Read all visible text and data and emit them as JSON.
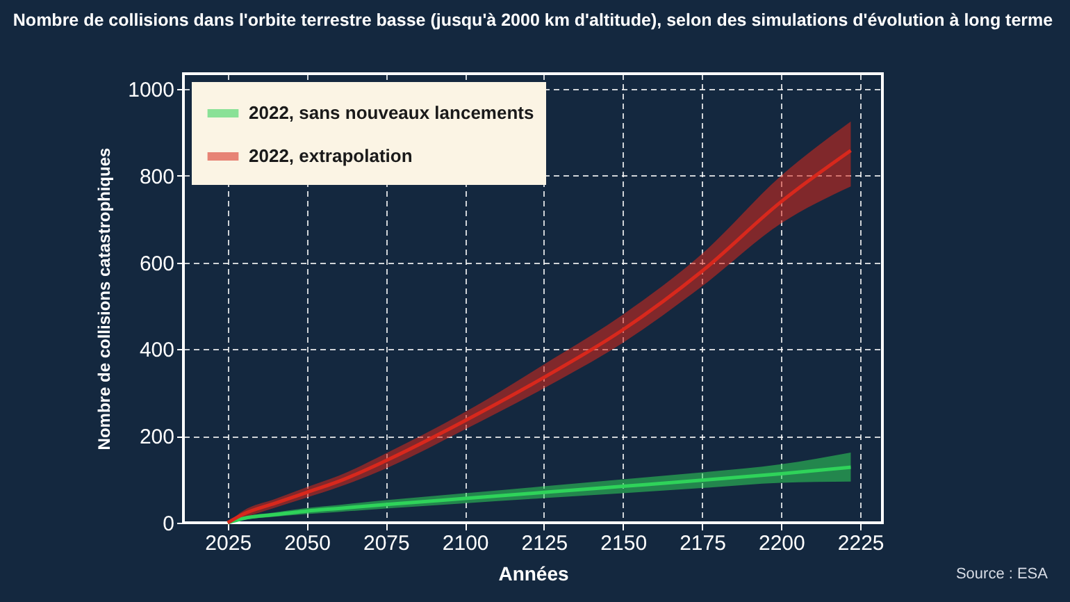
{
  "chart_data": {
    "type": "line",
    "title": "Nombre de collisions dans l'orbite terrestre basse  (jusqu'à 2000 km d'altitude), selon des simulations d'évolution à long terme",
    "xlabel": "Années",
    "ylabel": "Nombre de collisions catastrophiques",
    "x": [
      2025,
      2030,
      2040,
      2050,
      2060,
      2075,
      2100,
      2125,
      2150,
      2175,
      2200,
      2222
    ],
    "series": [
      {
        "name": "2022, sans nouveaux lancements",
        "color": "#2fd35a",
        "values": [
          0,
          10,
          19,
          27,
          33,
          42,
          56,
          70,
          84,
          98,
          113,
          128
        ],
        "lower": [
          0,
          7,
          14,
          20,
          25,
          33,
          45,
          57,
          68,
          80,
          92,
          95
        ],
        "upper": [
          0,
          13,
          24,
          34,
          41,
          52,
          68,
          84,
          100,
          116,
          135,
          162
        ]
      },
      {
        "name": "2022, extrapolation",
        "color": "#d8281c",
        "values": [
          0,
          20,
          45,
          70,
          95,
          143,
          235,
          335,
          445,
          580,
          740,
          858
        ],
        "lower": [
          0,
          12,
          35,
          58,
          82,
          125,
          215,
          310,
          415,
          545,
          690,
          775
        ],
        "upper": [
          0,
          28,
          55,
          82,
          108,
          160,
          255,
          365,
          480,
          620,
          800,
          925
        ]
      }
    ],
    "xlim": [
      2011,
      2232
    ],
    "ylim": [
      0,
      1035
    ],
    "xticks": [
      2025,
      2050,
      2075,
      2100,
      2125,
      2150,
      2175,
      2200,
      2225
    ],
    "yticks": [
      0,
      200,
      400,
      600,
      800,
      1000
    ],
    "grid": true,
    "legend": "top left",
    "line_style": "solid",
    "marker": "none",
    "annotations": [
      "Source : ESA"
    ]
  }
}
